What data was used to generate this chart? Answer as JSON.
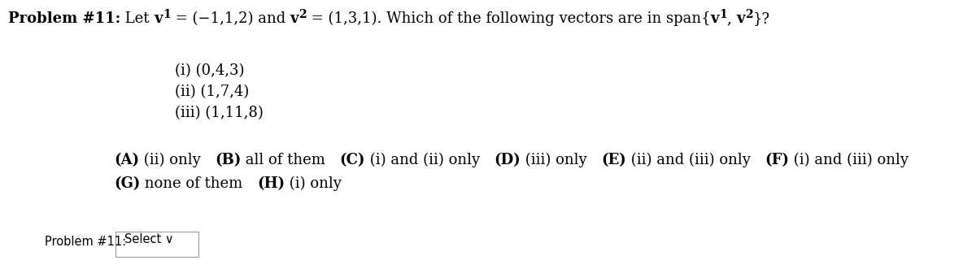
{
  "background_color": "#ffffff",
  "fig_width": 12.0,
  "fig_height": 3.31,
  "dpi": 100,
  "problem_label": "Problem #11:",
  "header_intro": " Let ",
  "header_v1": "v",
  "header_mid": " = (−1,1,2) and ",
  "header_v2": "v",
  "header_end": " = (1,3,1). Which of the following vectors are in span{",
  "header_span1": "v",
  "header_span2": "v",
  "header_close": "}?",
  "items": [
    "(i) (0,4,3)",
    "(ii) (1,7,4)",
    "(iii) (1,11,8)"
  ],
  "footer_label": "Problem #11:",
  "footer_dropdown": "Select ∨",
  "header_fontsize": 13,
  "item_fontsize": 13,
  "option_fontsize": 13,
  "footer_fontsize": 10.5,
  "sub_fontsize": 10
}
